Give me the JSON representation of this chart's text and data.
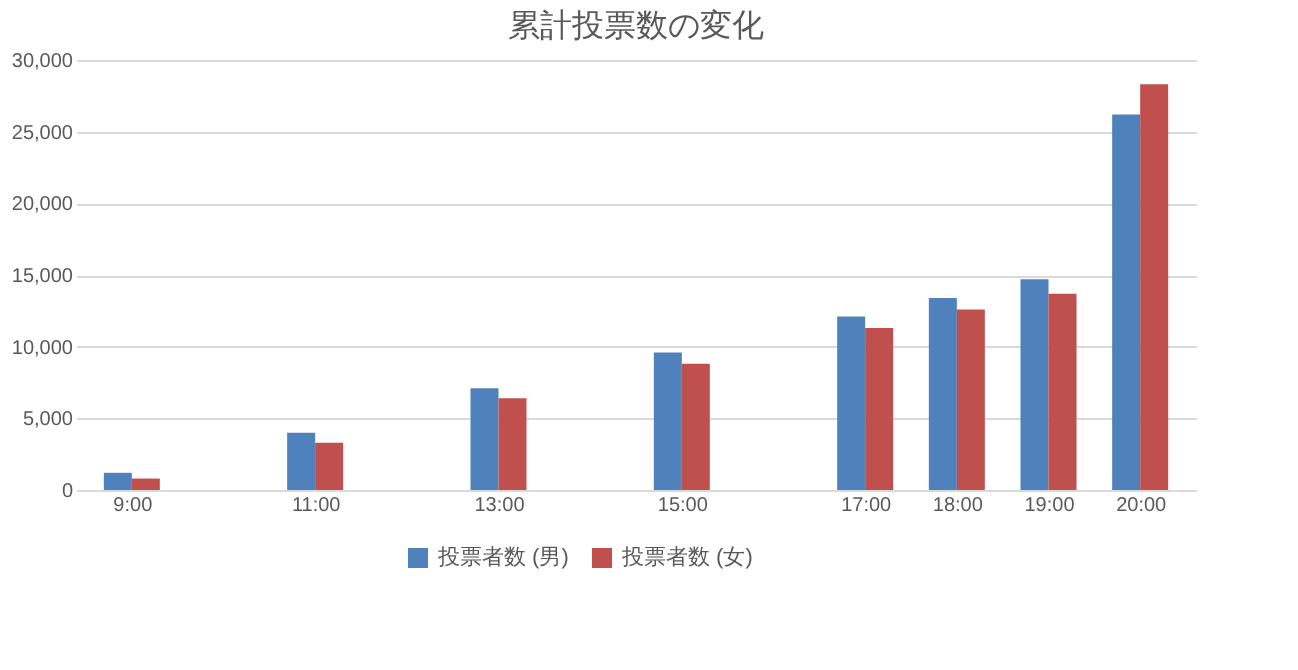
{
  "chart_data": {
    "type": "bar",
    "title": "累計投票数の変化",
    "x": [
      9,
      11,
      13,
      15,
      17,
      18,
      19,
      20
    ],
    "series": [
      {
        "name": "投票者数 (男)",
        "color": "#4f81bd",
        "values": [
          1200,
          4000,
          7100,
          9600,
          12100,
          13400,
          14700,
          26200
        ]
      },
      {
        "name": "投票者数 (女)",
        "color": "#c0504d",
        "values": [
          800,
          3300,
          6400,
          8800,
          11300,
          12600,
          13700,
          28300
        ]
      }
    ],
    "xlim": [
      8.5,
      20.5
    ],
    "xticks": [
      {
        "value": 9,
        "label": "9:00"
      },
      {
        "value": 11,
        "label": "11:00"
      },
      {
        "value": 13,
        "label": "13:00"
      },
      {
        "value": 15,
        "label": "15:00"
      },
      {
        "value": 17,
        "label": "17:00"
      },
      {
        "value": 18,
        "label": "18:00"
      },
      {
        "value": 19,
        "label": "19:00"
      },
      {
        "value": 20,
        "label": "20:00"
      }
    ],
    "ylim": [
      0,
      30000
    ],
    "yticks": [
      {
        "value": 0,
        "label": "0"
      },
      {
        "value": 5000,
        "label": "5,000"
      },
      {
        "value": 10000,
        "label": "10,000"
      },
      {
        "value": 15000,
        "label": "15,000"
      },
      {
        "value": 20000,
        "label": "20,000"
      },
      {
        "value": 25000,
        "label": "25,000"
      },
      {
        "value": 30000,
        "label": "30,000"
      }
    ],
    "grid": "y",
    "legend": "bottom"
  }
}
